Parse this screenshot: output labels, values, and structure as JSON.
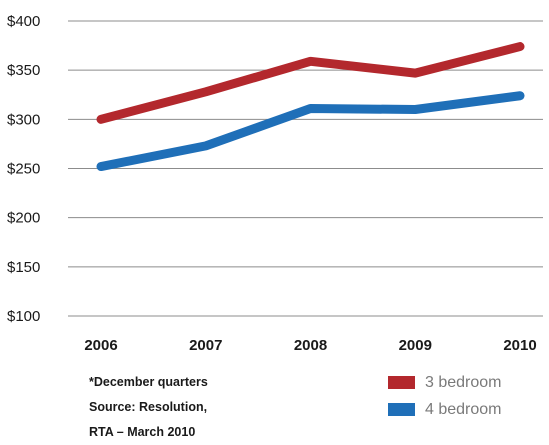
{
  "chart_data": {
    "type": "line",
    "title": "",
    "xlabel": "",
    "ylabel": "",
    "x": [
      "2006",
      "2007",
      "2008",
      "2009",
      "2010"
    ],
    "y_ticks": [
      "$100",
      "$150",
      "$200",
      "$250",
      "$300",
      "$350",
      "$400"
    ],
    "ylim": [
      100,
      400
    ],
    "grid": true,
    "legend_position": "bottom-right",
    "series": [
      {
        "name": "3 bedroom",
        "color": "#b3282d",
        "values": [
          300,
          328,
          359,
          347,
          374
        ]
      },
      {
        "name": "4 bedroom",
        "color": "#1f6fb8",
        "values": [
          252,
          273,
          311,
          310,
          324
        ]
      }
    ],
    "footnotes": [
      "*December quarters",
      "Source:  Resolution,",
      "RTA – March 2010"
    ]
  }
}
